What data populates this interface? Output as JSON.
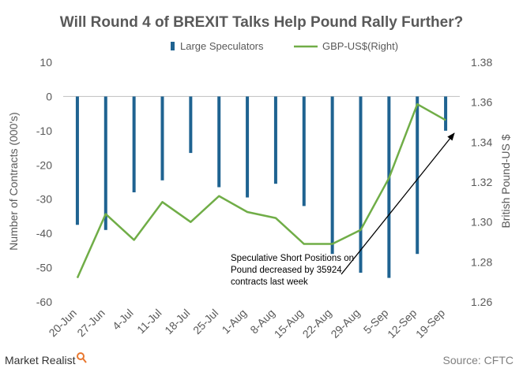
{
  "brand": "Market Realist",
  "source": "Source: CFTC",
  "colors": {
    "bar": "#1f6391",
    "line": "#70ad47",
    "arrow": "#000000",
    "text": "#595959"
  },
  "chart_data": {
    "type": "bar+line",
    "title": "Will Round 4 of BREXIT Talks Help Pound Rally Further?",
    "categories": [
      "20-Jun",
      "27-Jun",
      "4-Jul",
      "11-Jul",
      "18-Jul",
      "25-Jul",
      "1-Aug",
      "8-Aug",
      "15-Aug",
      "22-Aug",
      "29-Aug",
      "5-Sep",
      "12-Sep",
      "19-Sep"
    ],
    "ylabel": "Number of Contracts (000's)",
    "y2label": "British Pound-US $",
    "ylim": [
      -60,
      10
    ],
    "yticks": [
      10,
      0,
      -10,
      -20,
      -30,
      -40,
      -50,
      -60
    ],
    "y2lim": [
      1.26,
      1.38
    ],
    "y2ticks": [
      "1.38",
      "1.36",
      "1.34",
      "1.32",
      "1.30",
      "1.28",
      "1.26"
    ],
    "legend_position": "top",
    "grid": false,
    "series": [
      {
        "name": "Large Speculators",
        "axis": "left",
        "kind": "bar",
        "values": [
          -37.5,
          -39,
          -28,
          -24.5,
          -16.5,
          -26.5,
          -29.5,
          -25.5,
          -32,
          -46,
          -51.5,
          -53,
          -46,
          -10
        ]
      },
      {
        "name": "GBP-US$(Right)",
        "axis": "right",
        "kind": "line",
        "values": [
          1.272,
          1.304,
          1.291,
          1.31,
          1.3,
          1.313,
          1.305,
          1.302,
          1.289,
          1.289,
          1.296,
          1.322,
          1.359,
          1.351
        ]
      }
    ],
    "annotations": [
      {
        "lines": [
          "Speculative Short Positions on",
          "Pound  decreased by 35924",
          "contracts last week"
        ]
      }
    ]
  }
}
